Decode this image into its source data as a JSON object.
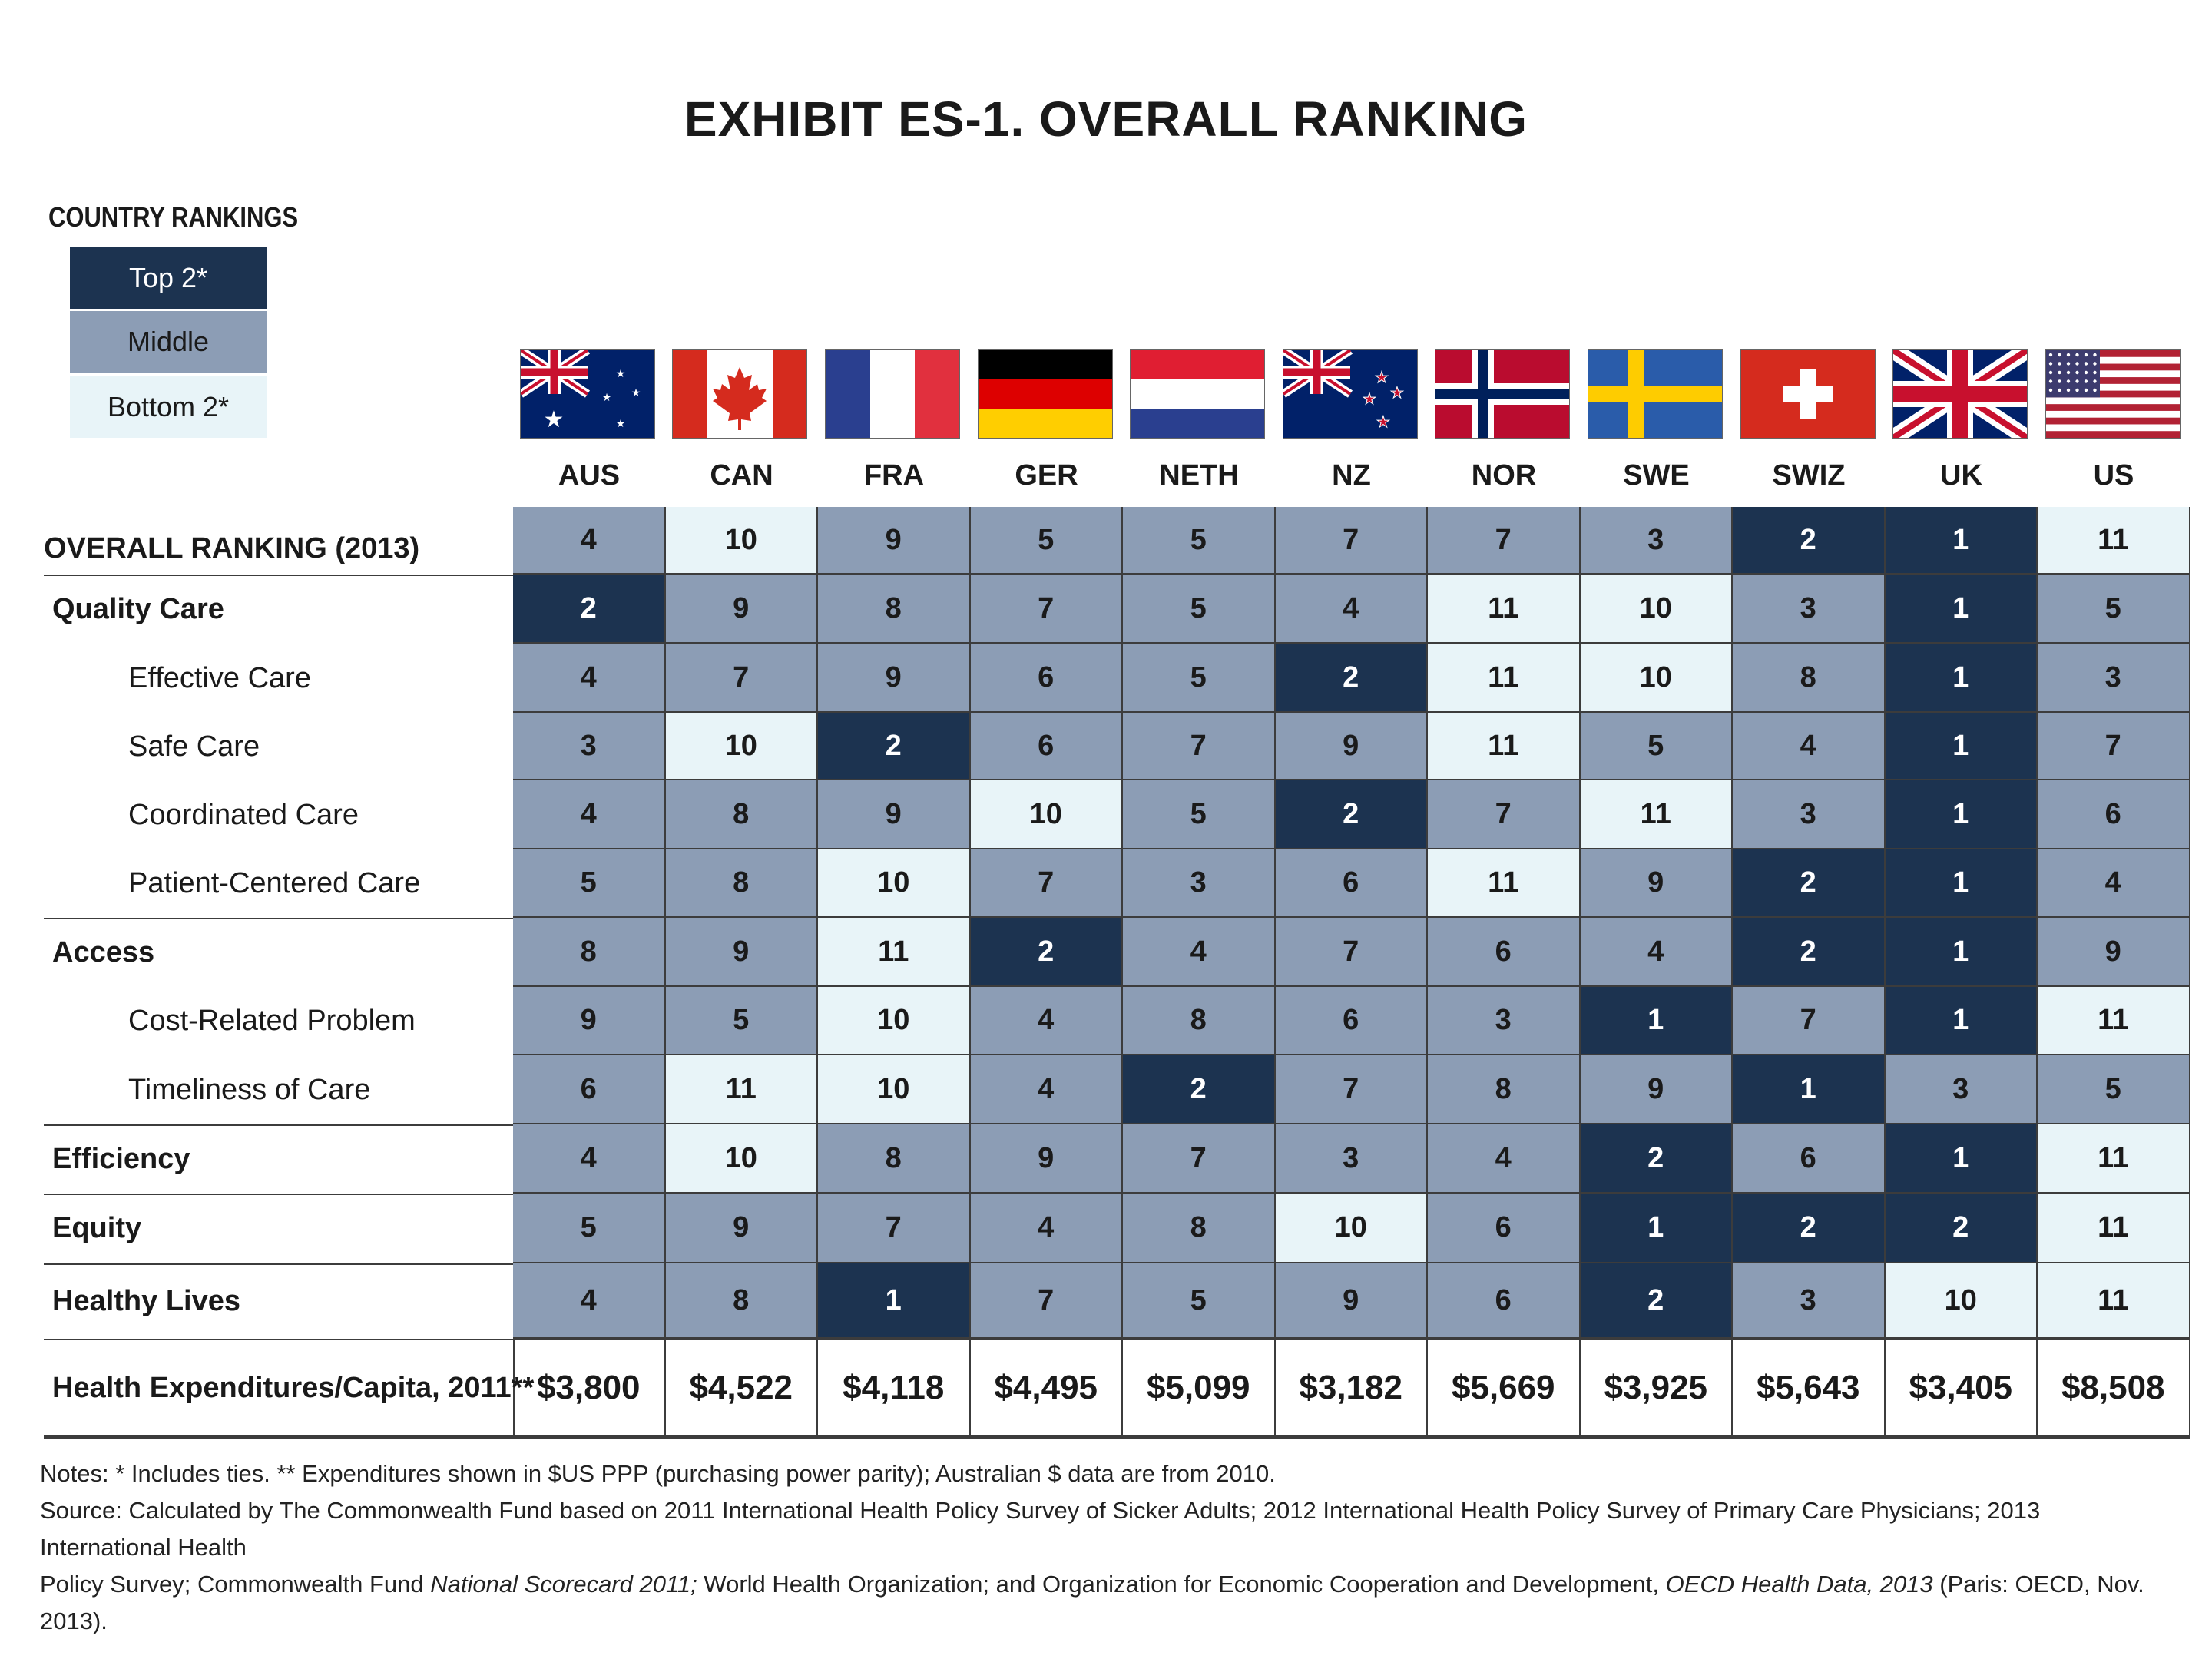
{
  "title": "EXHIBIT ES-1. OVERALL RANKING",
  "legend": {
    "title": "COUNTRY RANKINGS",
    "top": "Top 2*",
    "middle": "Middle",
    "bottom": "Bottom 2*"
  },
  "colors": {
    "top": "#1c3350",
    "middle": "#8c9db5",
    "bottom": "#e8f4f8"
  },
  "chart_data": {
    "type": "table",
    "title": "EXHIBIT ES-1. OVERALL RANKING",
    "columns": [
      "AUS",
      "CAN",
      "FRA",
      "GER",
      "NETH",
      "NZ",
      "NOR",
      "SWE",
      "SWIZ",
      "UK",
      "US"
    ],
    "rows": [
      {
        "label": "OVERALL RANKING (2013)",
        "level": "overall",
        "values": [
          4,
          10,
          9,
          5,
          5,
          7,
          7,
          3,
          2,
          1,
          11
        ]
      },
      {
        "label": "Quality Care",
        "level": "main",
        "values": [
          2,
          9,
          8,
          7,
          5,
          4,
          11,
          10,
          3,
          1,
          5
        ]
      },
      {
        "label": "Effective Care",
        "level": "sub",
        "values": [
          4,
          7,
          9,
          6,
          5,
          2,
          11,
          10,
          8,
          1,
          3
        ]
      },
      {
        "label": "Safe Care",
        "level": "sub",
        "values": [
          3,
          10,
          2,
          6,
          7,
          9,
          11,
          5,
          4,
          1,
          7
        ]
      },
      {
        "label": "Coordinated Care",
        "level": "sub",
        "values": [
          4,
          8,
          9,
          10,
          5,
          2,
          7,
          11,
          3,
          1,
          6
        ]
      },
      {
        "label": "Patient-Centered Care",
        "level": "sub",
        "values": [
          5,
          8,
          10,
          7,
          3,
          6,
          11,
          9,
          2,
          1,
          4
        ]
      },
      {
        "label": "Access",
        "level": "main",
        "values": [
          8,
          9,
          11,
          2,
          4,
          7,
          6,
          4,
          2,
          1,
          9
        ]
      },
      {
        "label": "Cost-Related Problem",
        "level": "sub",
        "values": [
          9,
          5,
          10,
          4,
          8,
          6,
          3,
          1,
          7,
          1,
          11
        ]
      },
      {
        "label": "Timeliness of Care",
        "level": "sub",
        "values": [
          6,
          11,
          10,
          4,
          2,
          7,
          8,
          9,
          1,
          3,
          5
        ]
      },
      {
        "label": "Efficiency",
        "level": "main",
        "values": [
          4,
          10,
          8,
          9,
          7,
          3,
          4,
          2,
          6,
          1,
          11
        ]
      },
      {
        "label": "Equity",
        "level": "main",
        "values": [
          5,
          9,
          7,
          4,
          8,
          10,
          6,
          1,
          2,
          2,
          11
        ]
      },
      {
        "label": "Healthy Lives",
        "level": "main",
        "values": [
          4,
          8,
          1,
          7,
          5,
          9,
          6,
          2,
          3,
          10,
          11
        ]
      }
    ],
    "tiers": [
      [
        "mid",
        "bot",
        "mid",
        "mid",
        "mid",
        "mid",
        "mid",
        "mid",
        "top",
        "top",
        "bot"
      ],
      [
        "top",
        "mid",
        "mid",
        "mid",
        "mid",
        "mid",
        "bot",
        "bot",
        "mid",
        "top",
        "mid"
      ],
      [
        "mid",
        "mid",
        "mid",
        "mid",
        "mid",
        "top",
        "bot",
        "bot",
        "mid",
        "top",
        "mid"
      ],
      [
        "mid",
        "bot",
        "top",
        "mid",
        "mid",
        "mid",
        "bot",
        "mid",
        "mid",
        "top",
        "mid"
      ],
      [
        "mid",
        "mid",
        "mid",
        "bot",
        "mid",
        "top",
        "mid",
        "bot",
        "mid",
        "top",
        "mid"
      ],
      [
        "mid",
        "mid",
        "bot",
        "mid",
        "mid",
        "mid",
        "bot",
        "mid",
        "top",
        "top",
        "mid"
      ],
      [
        "mid",
        "mid",
        "bot",
        "top",
        "mid",
        "mid",
        "mid",
        "mid",
        "top",
        "top",
        "mid"
      ],
      [
        "mid",
        "mid",
        "bot",
        "mid",
        "mid",
        "mid",
        "mid",
        "top",
        "mid",
        "top",
        "bot"
      ],
      [
        "mid",
        "bot",
        "bot",
        "mid",
        "top",
        "mid",
        "mid",
        "mid",
        "top",
        "mid",
        "mid"
      ],
      [
        "mid",
        "bot",
        "mid",
        "mid",
        "mid",
        "mid",
        "mid",
        "top",
        "mid",
        "top",
        "bot"
      ],
      [
        "mid",
        "mid",
        "mid",
        "mid",
        "mid",
        "bot",
        "mid",
        "top",
        "top",
        "top",
        "bot"
      ],
      [
        "mid",
        "mid",
        "top",
        "mid",
        "mid",
        "mid",
        "mid",
        "top",
        "mid",
        "bot",
        "bot"
      ]
    ],
    "expenditures": {
      "label": "Health Expenditures/Capita, 2011**",
      "values": [
        "$3,800",
        "$4,522",
        "$4,118",
        "$4,495",
        "$5,099",
        "$3,182",
        "$5,669",
        "$3,925",
        "$5,643",
        "$3,405",
        "$8,508"
      ]
    }
  },
  "flags": [
    "flag-australia-icon",
    "flag-canada-icon",
    "flag-france-icon",
    "flag-germany-icon",
    "flag-netherlands-icon",
    "flag-new-zealand-icon",
    "flag-norway-icon",
    "flag-sweden-icon",
    "flag-switzerland-icon",
    "flag-uk-icon",
    "flag-us-icon"
  ],
  "notes": {
    "line1": "Notes: * Includes ties. ** Expenditures shown in $US PPP (purchasing power parity); Australian $ data are from 2010.",
    "line2a": "Source: Calculated by The Commonwealth Fund based on 2011 International Health Policy Survey of Sicker Adults; 2012 International Health Policy Survey of Primary Care Physicians; 2013 International Health",
    "line3a": "Policy Survey; Commonwealth Fund ",
    "line3b": "National Scorecard 2011;",
    "line3c": " World Health Organization; and Organization for Economic Cooperation and Development, ",
    "line3d": "OECD Health Data, 2013",
    "line3e": " (Paris: OECD, Nov. 2013)."
  }
}
